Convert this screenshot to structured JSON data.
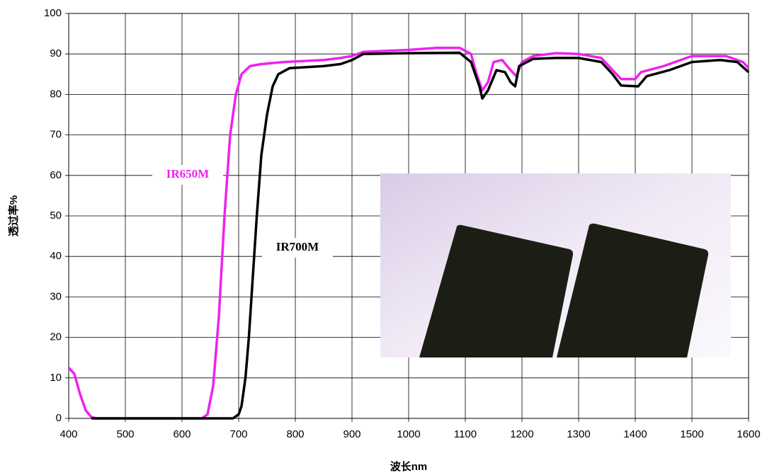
{
  "chart_data": {
    "type": "line",
    "x_label": "波长nm",
    "y_label": "透过率%",
    "xlim": [
      400,
      1600
    ],
    "xticks": [
      400,
      500,
      600,
      700,
      800,
      900,
      1000,
      1100,
      1200,
      1300,
      1400,
      1500,
      1600
    ],
    "ylim": [
      0,
      100
    ],
    "yticks": [
      0,
      10,
      20,
      30,
      40,
      50,
      60,
      70,
      80,
      90,
      100
    ],
    "grid": true,
    "series": [
      {
        "name": "IR650M",
        "color": "#ee22ee",
        "x": [
          400,
          410,
          420,
          430,
          440,
          450,
          600,
          635,
          645,
          655,
          665,
          675,
          685,
          695,
          705,
          720,
          740,
          780,
          850,
          880,
          900,
          920,
          1000,
          1050,
          1090,
          1110,
          1120,
          1130,
          1140,
          1150,
          1165,
          1180,
          1190,
          1200,
          1220,
          1260,
          1300,
          1340,
          1360,
          1375,
          1400,
          1410,
          1450,
          1500,
          1520,
          1560,
          1590,
          1600
        ],
        "values": [
          12.5,
          11,
          6,
          2,
          0.3,
          0,
          0,
          0,
          1,
          8,
          25,
          50,
          70,
          80,
          85,
          87,
          87.5,
          88,
          88.5,
          89,
          89.5,
          90.5,
          91,
          91.5,
          91.5,
          90,
          85,
          81,
          83,
          88,
          88.5,
          86,
          84.5,
          88,
          89.5,
          90.2,
          90,
          89,
          86,
          83.8,
          83.8,
          85.5,
          87,
          89.5,
          89.5,
          89.5,
          88,
          86.5
        ]
      },
      {
        "name": "IR700M",
        "color": "#000000",
        "x": [
          440,
          690,
          700,
          705,
          712,
          718,
          725,
          732,
          740,
          750,
          760,
          770,
          790,
          850,
          880,
          900,
          920,
          1000,
          1090,
          1110,
          1125,
          1130,
          1140,
          1155,
          1170,
          1180,
          1188,
          1195,
          1220,
          1260,
          1300,
          1340,
          1360,
          1375,
          1405,
          1420,
          1460,
          1500,
          1550,
          1580,
          1600
        ],
        "values": [
          0,
          0,
          1,
          3,
          10,
          20,
          35,
          50,
          65,
          75,
          82,
          85,
          86.5,
          87,
          87.5,
          88.5,
          90,
          90.2,
          90.3,
          88,
          82,
          79,
          81,
          86,
          85.5,
          83,
          82,
          87,
          88.8,
          89,
          89,
          88,
          85,
          82.2,
          82,
          84.5,
          86,
          88,
          88.5,
          88,
          85.5
        ]
      }
    ]
  }
}
